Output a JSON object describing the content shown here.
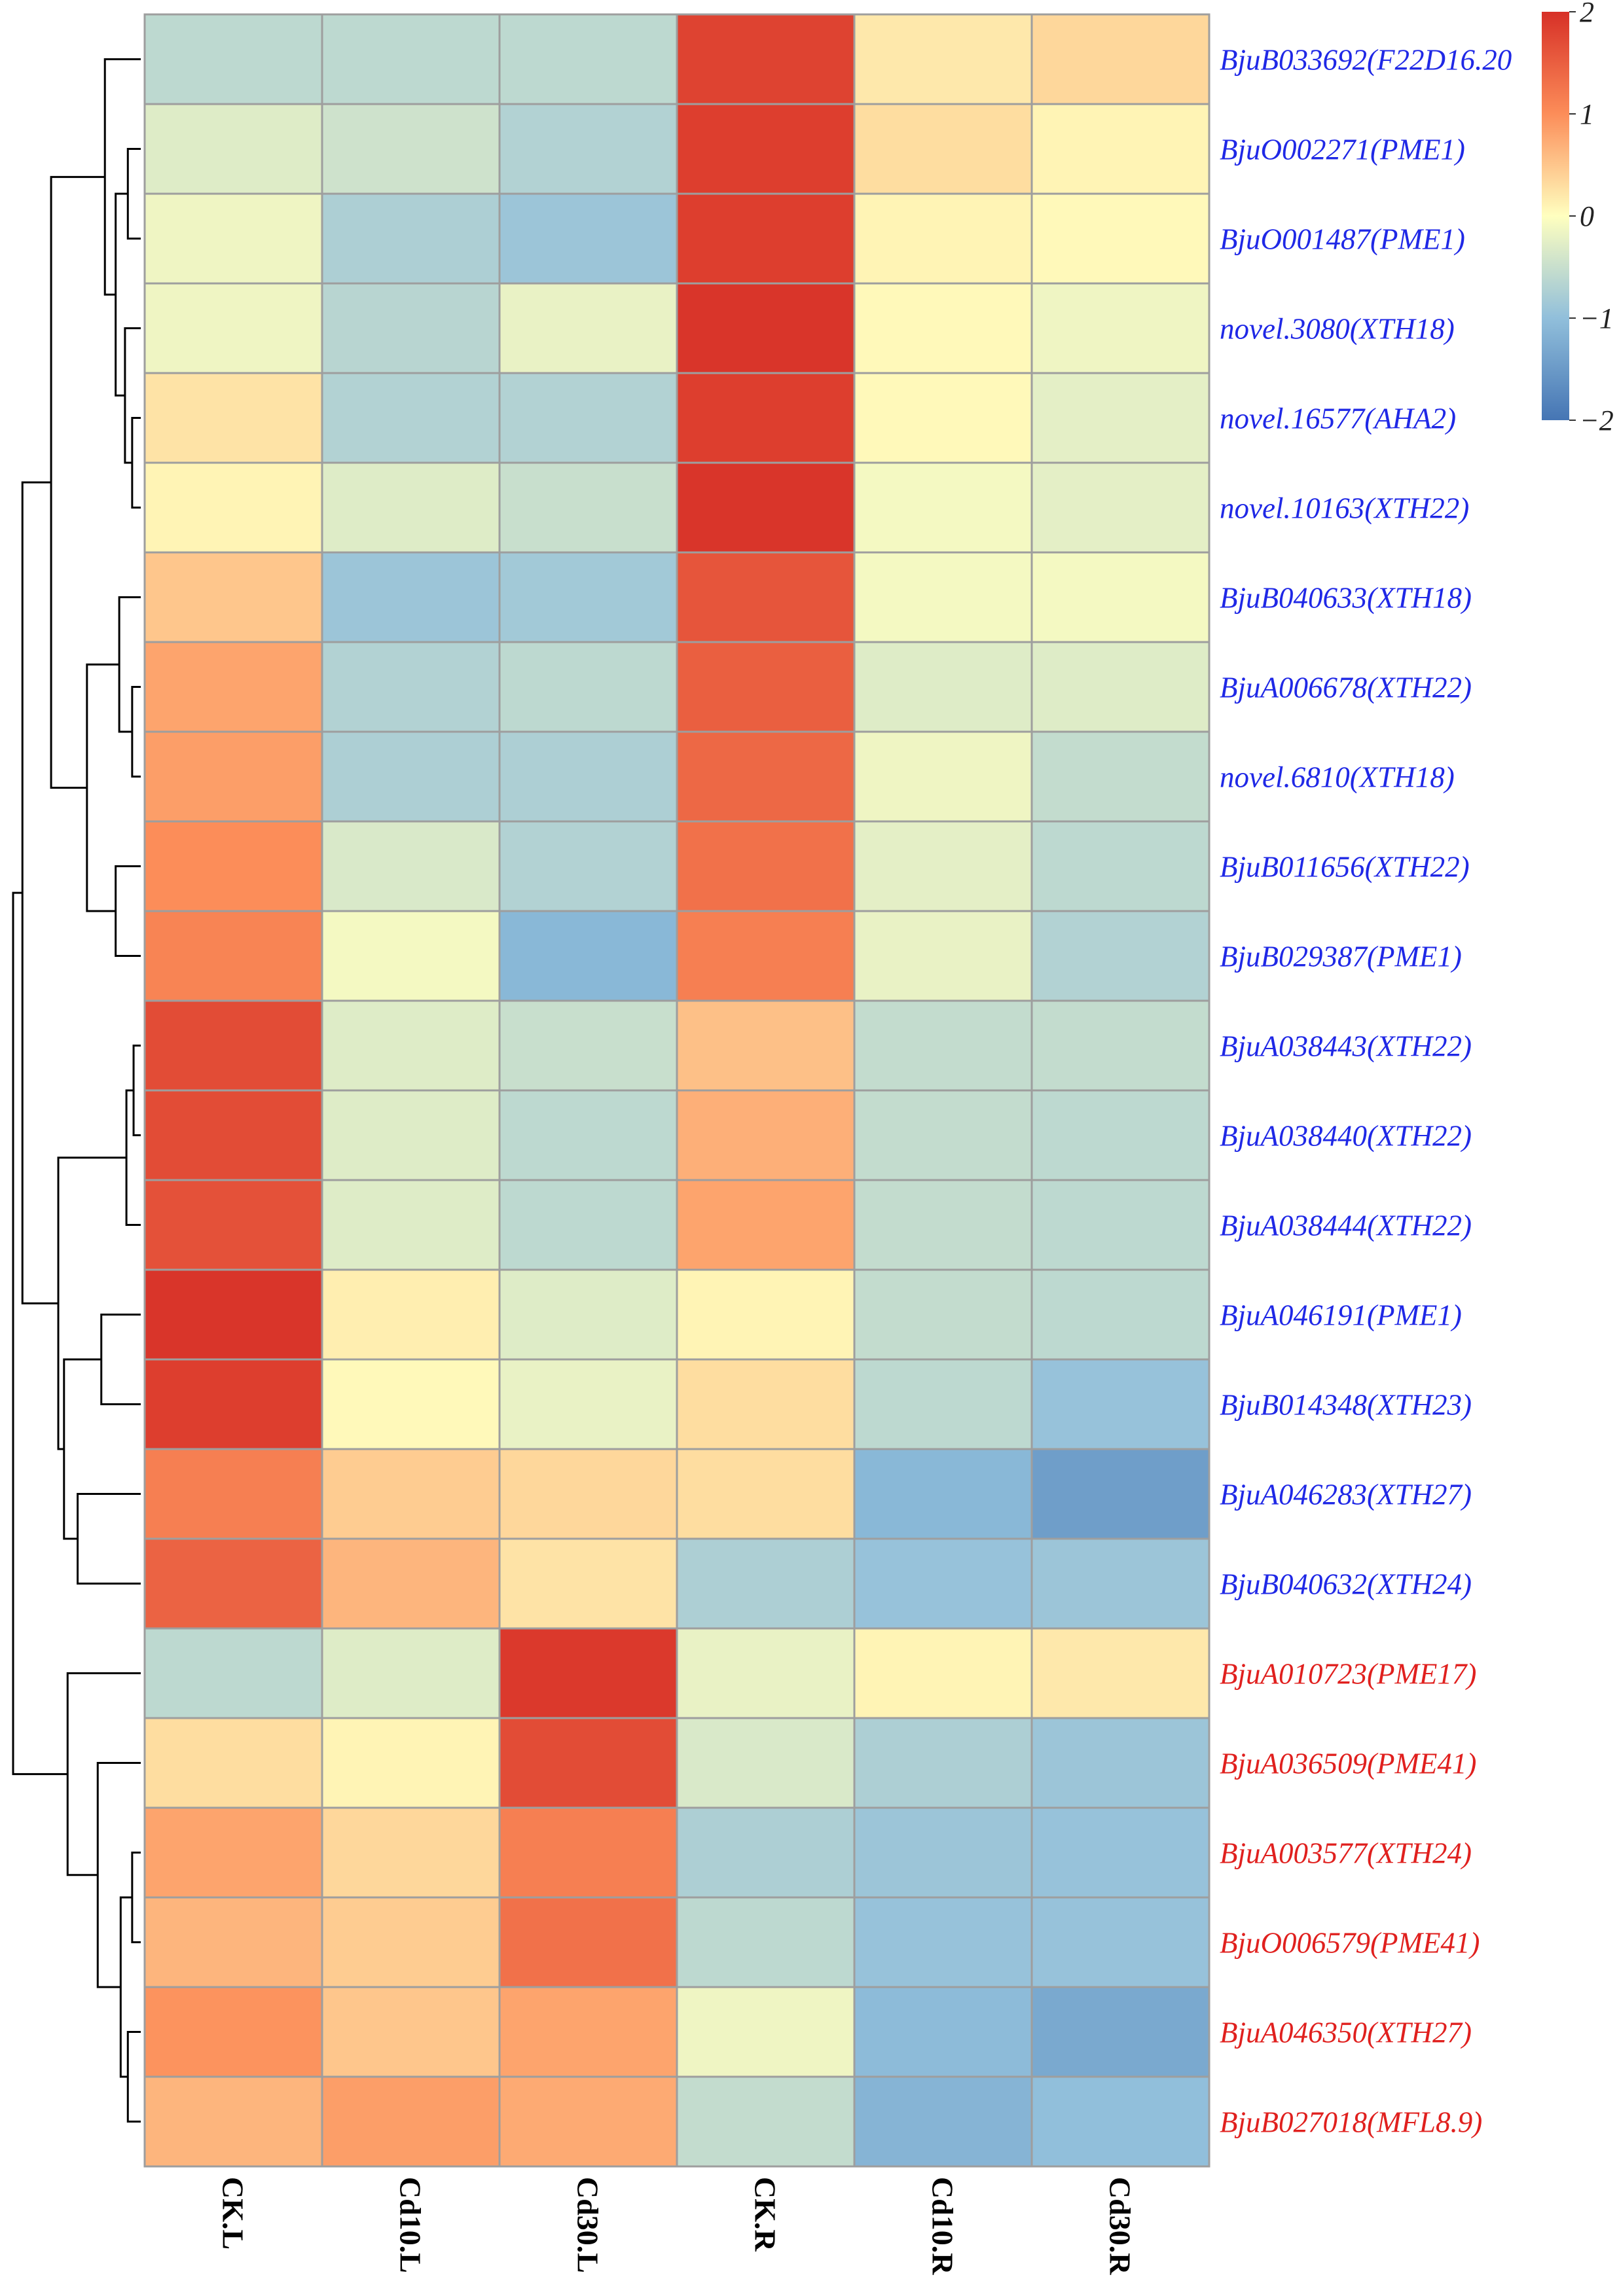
{
  "chart_data": {
    "type": "heatmap",
    "title": "",
    "columns": [
      "CK.L",
      "Cd10.L",
      "Cd30.L",
      "CK.R",
      "Cd10.R",
      "Cd30.R"
    ],
    "rows": [
      {
        "label": "BjuB033692(F22D16.20",
        "group": "blue",
        "values": [
          -0.6,
          -0.6,
          -0.6,
          1.8,
          0.2,
          0.35
        ]
      },
      {
        "label": "BjuO002271(PME1)",
        "group": "blue",
        "values": [
          -0.3,
          -0.45,
          -0.7,
          1.85,
          0.3,
          0.1
        ]
      },
      {
        "label": "BjuO001487(PME1)",
        "group": "blue",
        "values": [
          -0.15,
          -0.75,
          -0.9,
          1.85,
          0.1,
          0.05
        ]
      },
      {
        "label": "novel.3080(XTH18)",
        "group": "blue",
        "values": [
          -0.15,
          -0.65,
          -0.2,
          1.95,
          0.05,
          -0.15
        ]
      },
      {
        "label": "novel.16577(AHA2)",
        "group": "blue",
        "values": [
          0.25,
          -0.7,
          -0.7,
          1.85,
          0.05,
          -0.25
        ]
      },
      {
        "label": "novel.10163(XTH22)",
        "group": "blue",
        "values": [
          0.1,
          -0.3,
          -0.5,
          1.95,
          -0.1,
          -0.25
        ]
      },
      {
        "label": "BjuB040633(XTH18)",
        "group": "blue",
        "values": [
          0.5,
          -0.9,
          -0.85,
          1.6,
          -0.1,
          -0.1
        ]
      },
      {
        "label": "BjuA006678(XTH22)",
        "group": "blue",
        "values": [
          0.8,
          -0.7,
          -0.6,
          1.5,
          -0.3,
          -0.3
        ]
      },
      {
        "label": "novel.6810(XTH18)",
        "group": "blue",
        "values": [
          0.85,
          -0.75,
          -0.75,
          1.4,
          -0.15,
          -0.55
        ]
      },
      {
        "label": "BjuB011656(XTH22)",
        "group": "blue",
        "values": [
          1.0,
          -0.35,
          -0.7,
          1.3,
          -0.25,
          -0.6
        ]
      },
      {
        "label": "BjuB029387(PME1)",
        "group": "blue",
        "values": [
          1.1,
          -0.1,
          -1.1,
          1.15,
          -0.2,
          -0.7
        ]
      },
      {
        "label": "BjuA038443(XTH22)",
        "group": "blue",
        "values": [
          1.7,
          -0.3,
          -0.5,
          0.55,
          -0.55,
          -0.55
        ]
      },
      {
        "label": "BjuA038440(XTH22)",
        "group": "blue",
        "values": [
          1.7,
          -0.3,
          -0.6,
          0.7,
          -0.55,
          -0.6
        ]
      },
      {
        "label": "BjuA038444(XTH22)",
        "group": "blue",
        "values": [
          1.65,
          -0.3,
          -0.6,
          0.8,
          -0.55,
          -0.6
        ]
      },
      {
        "label": "BjuA046191(PME1)",
        "group": "blue",
        "values": [
          1.95,
          0.15,
          -0.3,
          0.1,
          -0.55,
          -0.6
        ]
      },
      {
        "label": "BjuB014348(XTH23)",
        "group": "blue",
        "values": [
          1.85,
          0.05,
          -0.2,
          0.3,
          -0.6,
          -0.95
        ]
      },
      {
        "label": "BjuA046283(XTH27)",
        "group": "blue",
        "values": [
          1.15,
          0.45,
          0.35,
          0.3,
          -1.1,
          -1.45
        ]
      },
      {
        "label": "BjuB040632(XTH24)",
        "group": "blue",
        "values": [
          1.45,
          0.65,
          0.25,
          -0.75,
          -0.95,
          -0.9
        ]
      },
      {
        "label": "BjuA010723(PME17)",
        "group": "red",
        "values": [
          -0.6,
          -0.3,
          1.9,
          -0.2,
          0.1,
          0.2
        ]
      },
      {
        "label": "BjuA036509(PME41)",
        "group": "red",
        "values": [
          0.3,
          0.1,
          1.7,
          -0.35,
          -0.75,
          -0.9
        ]
      },
      {
        "label": "BjuA003577(XTH24)",
        "group": "red",
        "values": [
          0.8,
          0.35,
          1.15,
          -0.75,
          -0.9,
          -0.95
        ]
      },
      {
        "label": "BjuO006579(PME41)",
        "group": "red",
        "values": [
          0.65,
          0.45,
          1.3,
          -0.6,
          -0.95,
          -0.95
        ]
      },
      {
        "label": "BjuA046350(XTH27)",
        "group": "red",
        "values": [
          0.95,
          0.5,
          0.8,
          -0.15,
          -1.05,
          -1.3
        ]
      },
      {
        "label": "BjuB027018(MFL8.9)",
        "group": "red",
        "values": [
          0.65,
          0.85,
          0.75,
          -0.55,
          -1.15,
          -1.0
        ]
      }
    ],
    "label_colors": {
      "blue": "#1f28e6",
      "red": "#e0201e"
    },
    "color_scale": {
      "stops": [
        {
          "value": -2,
          "color": "#4575b4"
        },
        {
          "value": -1,
          "color": "#91bfdb"
        },
        {
          "value": 0,
          "color": "#ffffbf"
        },
        {
          "value": 1,
          "color": "#fc8d59"
        },
        {
          "value": 2,
          "color": "#d73027"
        }
      ],
      "range": [
        -2,
        2
      ],
      "ticks": [
        2,
        1,
        0,
        -1,
        -2
      ],
      "tick_labels": [
        "2",
        "1",
        "0",
        "−1",
        "−2"
      ]
    },
    "legend": {
      "position": "top-right"
    },
    "row_dendrogram": true,
    "grid_color": "#9e9e9e"
  }
}
